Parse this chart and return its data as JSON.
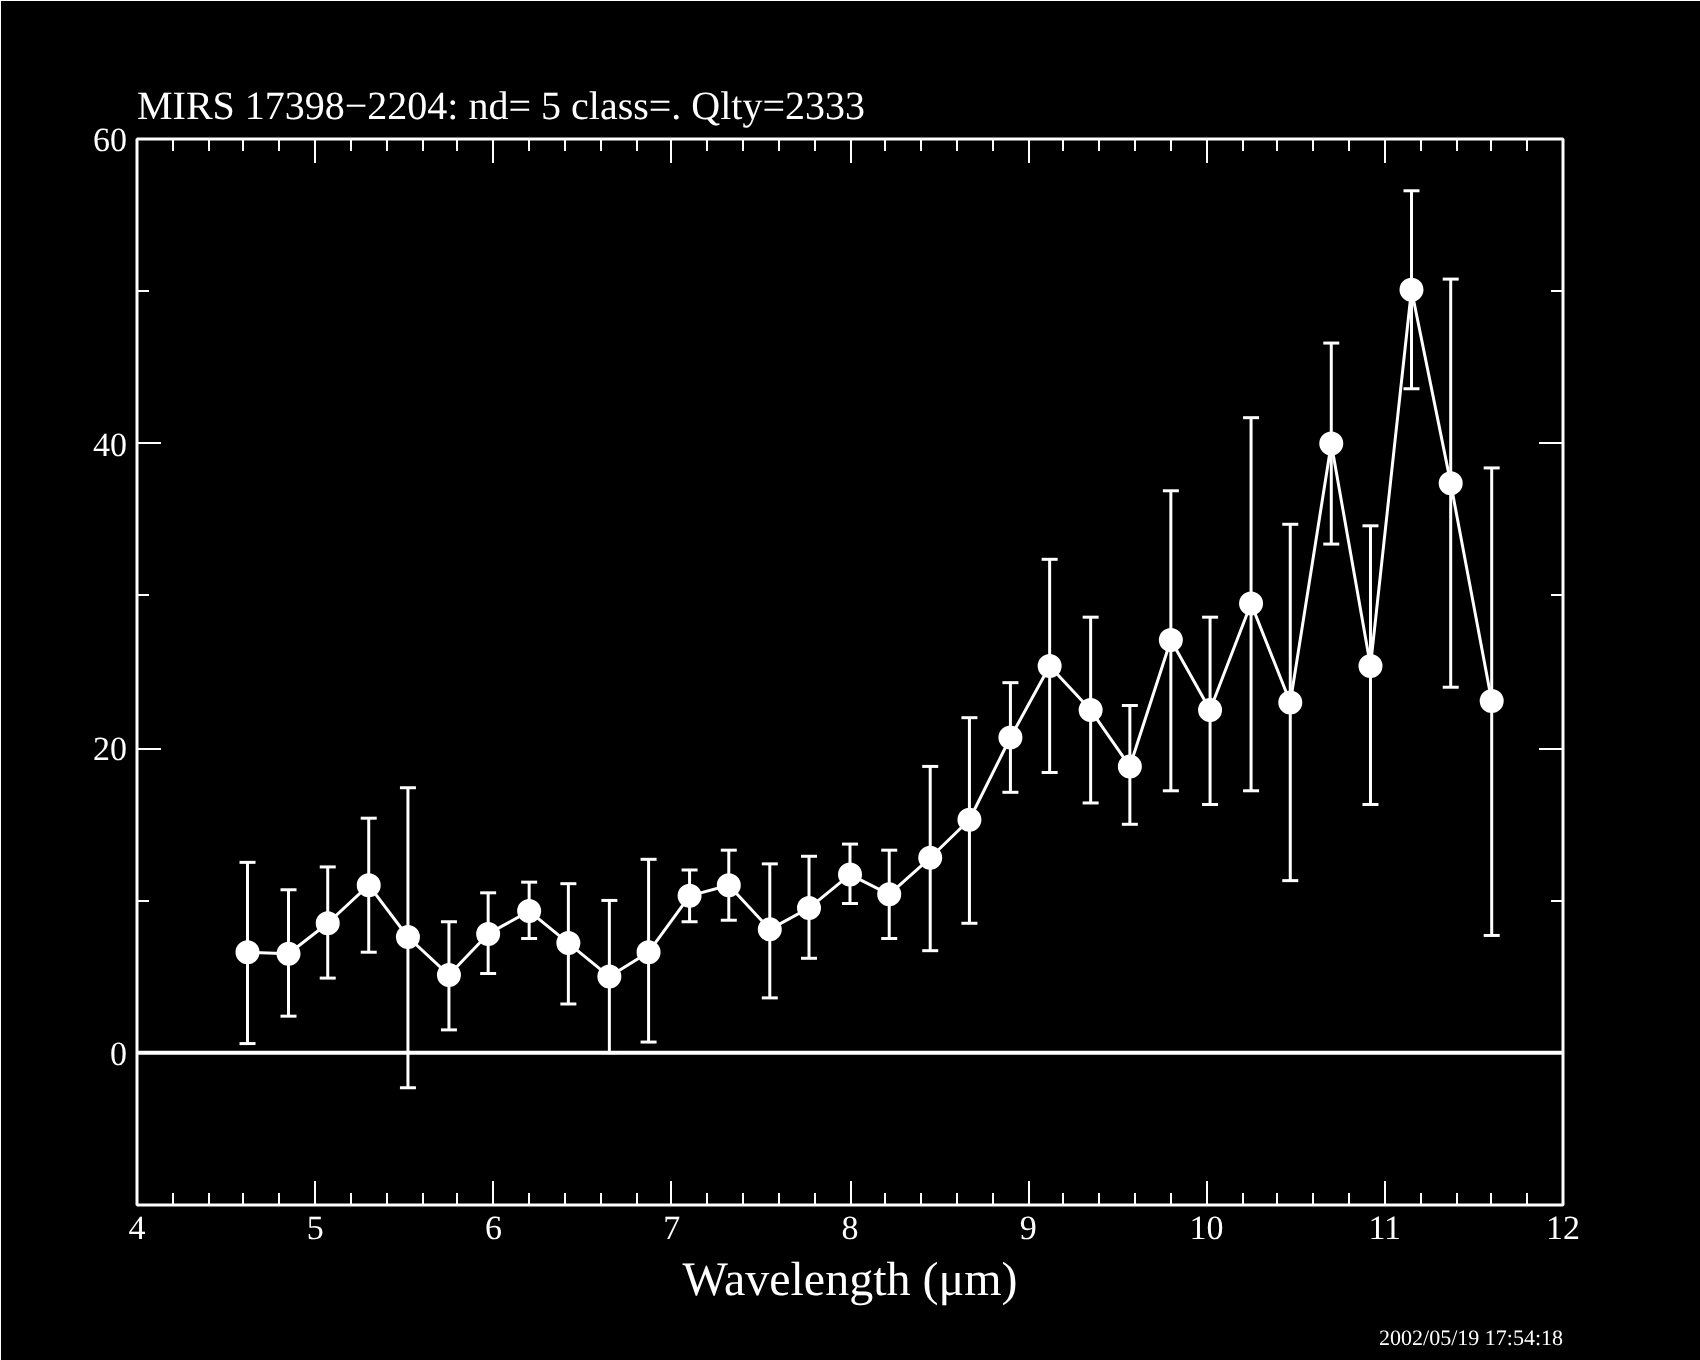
{
  "chart_data": {
    "type": "line",
    "title": "MIRS 17398−2204:    nd= 5   class=.   Qlty=2333",
    "xlabel": "Wavelength (μm)",
    "x": [
      4.62,
      4.85,
      5.07,
      5.3,
      5.52,
      5.75,
      5.97,
      6.2,
      6.42,
      6.65,
      6.87,
      7.1,
      7.32,
      7.55,
      7.77,
      8.0,
      8.22,
      8.45,
      8.67,
      8.9,
      9.12,
      9.35,
      9.57,
      9.8,
      10.02,
      10.25,
      10.47,
      10.7,
      10.92,
      11.15,
      11.37,
      11.6
    ],
    "series": [
      {
        "color": "#ffffff",
        "values": [
          6.6,
          6.5,
          8.5,
          11.0,
          7.6,
          5.1,
          7.8,
          9.3,
          7.2,
          5.0,
          6.6,
          10.3,
          11.0,
          8.1,
          9.5,
          11.7,
          10.4,
          12.8,
          15.3,
          20.7,
          25.4,
          22.5,
          18.8,
          27.1,
          22.5,
          29.5,
          23.0,
          40.0,
          25.4,
          50.1,
          37.4,
          23.1
        ],
        "errors": [
          [
            0.6,
            12.5
          ],
          [
            2.4,
            10.7
          ],
          [
            4.9,
            12.2
          ],
          [
            6.6,
            15.4
          ],
          [
            -2.3,
            17.4
          ],
          [
            1.5,
            8.6
          ],
          [
            5.2,
            10.5
          ],
          [
            7.5,
            11.2
          ],
          [
            3.2,
            11.1
          ],
          [
            0.0,
            10.0
          ],
          [
            0.7,
            12.7
          ],
          [
            8.6,
            12.0
          ],
          [
            8.7,
            13.3
          ],
          [
            3.6,
            12.4
          ],
          [
            6.2,
            12.9
          ],
          [
            9.8,
            13.7
          ],
          [
            7.5,
            13.3
          ],
          [
            6.7,
            18.8
          ],
          [
            8.5,
            22.0
          ],
          [
            17.1,
            24.3
          ],
          [
            18.4,
            32.4
          ],
          [
            16.4,
            28.6
          ],
          [
            15.0,
            22.8
          ],
          [
            17.2,
            36.9
          ],
          [
            16.3,
            28.6
          ],
          [
            17.2,
            41.7
          ],
          [
            11.3,
            34.7
          ],
          [
            33.4,
            46.6
          ],
          [
            16.3,
            34.6
          ],
          [
            43.6,
            56.6
          ],
          [
            24.0,
            50.8
          ],
          [
            7.7,
            38.4
          ]
        ]
      }
    ],
    "xlim": [
      4,
      12
    ],
    "ylim": [
      -10,
      60
    ],
    "xticks": [
      4,
      5,
      6,
      7,
      8,
      9,
      10,
      11,
      12
    ],
    "yticks": [
      0,
      20,
      40,
      60
    ],
    "ref_lines": [
      {
        "axis": "y",
        "value": 0,
        "color": "#ffffff"
      }
    ],
    "marker": "circle",
    "grid": false,
    "annotations": [
      "2002/05/19 17:54:18"
    ]
  }
}
